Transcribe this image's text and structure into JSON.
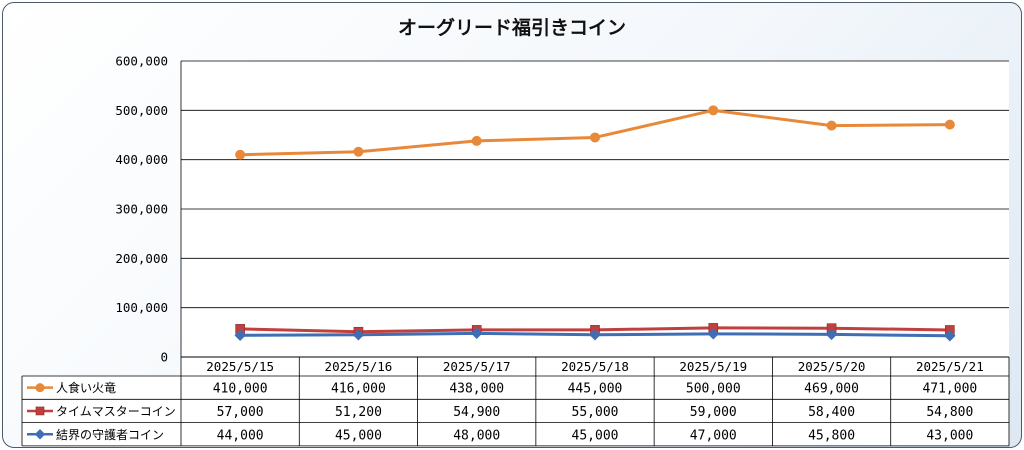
{
  "chart_data": {
    "type": "line",
    "title": "オーグリード福引きコイン",
    "categories": [
      "2025/5/15",
      "2025/5/16",
      "2025/5/17",
      "2025/5/18",
      "2025/5/19",
      "2025/5/20",
      "2025/5/21"
    ],
    "y_ticks": [
      "0",
      "100,000",
      "200,000",
      "300,000",
      "400,000",
      "500,000",
      "600,000"
    ],
    "ylim": [
      0,
      600000
    ],
    "grid": true,
    "data_table": true,
    "series": [
      {
        "name": "人食い火竜",
        "color": "#e8893a",
        "marker": "circle",
        "values": [
          410000,
          416000,
          438000,
          445000,
          500000,
          469000,
          471000
        ],
        "labels": [
          "410,000",
          "416,000",
          "438,000",
          "445,000",
          "500,000",
          "469,000",
          "471,000"
        ]
      },
      {
        "name": "タイムマスターコイン",
        "color": "#c0403f",
        "marker": "square",
        "values": [
          57000,
          51200,
          54900,
          55000,
          59000,
          58400,
          54800
        ],
        "labels": [
          "57,000",
          "51,200",
          "54,900",
          "55,000",
          "59,000",
          "58,400",
          "54,800"
        ]
      },
      {
        "name": "結界の守護者コイン",
        "color": "#3f6eb5",
        "marker": "diamond",
        "values": [
          44000,
          45000,
          48000,
          45000,
          47000,
          45800,
          43000
        ],
        "labels": [
          "44,000",
          "45,000",
          "48,000",
          "45,000",
          "47,000",
          "45,800",
          "43,000"
        ]
      }
    ]
  }
}
